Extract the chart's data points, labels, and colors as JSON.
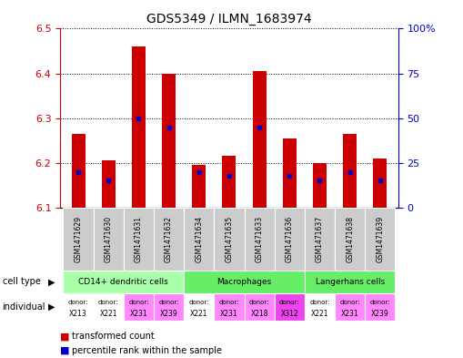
{
  "title": "GDS5349 / ILMN_1683974",
  "samples": [
    "GSM1471629",
    "GSM1471630",
    "GSM1471631",
    "GSM1471632",
    "GSM1471634",
    "GSM1471635",
    "GSM1471633",
    "GSM1471636",
    "GSM1471637",
    "GSM1471638",
    "GSM1471639"
  ],
  "transformed_counts": [
    6.265,
    6.205,
    6.46,
    6.4,
    6.195,
    6.215,
    6.405,
    6.255,
    6.2,
    6.265,
    6.21
  ],
  "percentile_ranks": [
    20,
    15,
    50,
    45,
    20,
    18,
    45,
    18,
    15,
    20,
    15
  ],
  "y_min": 6.1,
  "y_max": 6.5,
  "y_ticks": [
    6.1,
    6.2,
    6.3,
    6.4,
    6.5
  ],
  "y2_ticks": [
    0,
    25,
    50,
    75,
    100
  ],
  "y2_tick_labels": [
    "0",
    "25",
    "50",
    "75",
    "100%"
  ],
  "bar_color": "#cc0000",
  "blue_color": "#0000cc",
  "cell_types": [
    {
      "label": "CD14+ dendritic cells",
      "start": 0,
      "end": 4,
      "color": "#aaffaa"
    },
    {
      "label": "Macrophages",
      "start": 4,
      "end": 8,
      "color": "#66ee66"
    },
    {
      "label": "Langerhans cells",
      "start": 8,
      "end": 11,
      "color": "#66ee66"
    }
  ],
  "individuals": [
    "X213",
    "X221",
    "X231",
    "X239",
    "X221",
    "X231",
    "X218",
    "X312",
    "X221",
    "X231",
    "X239"
  ],
  "ind_colors": [
    "#ffffff",
    "#ffffff",
    "#ff88ff",
    "#ff88ff",
    "#ffffff",
    "#ff88ff",
    "#ff88ff",
    "#ee44ee",
    "#ffffff",
    "#ff88ff",
    "#ff88ff"
  ],
  "gsm_bg": "#cccccc",
  "ylabel_color": "#cc0000",
  "y2label_color": "#0000cc"
}
